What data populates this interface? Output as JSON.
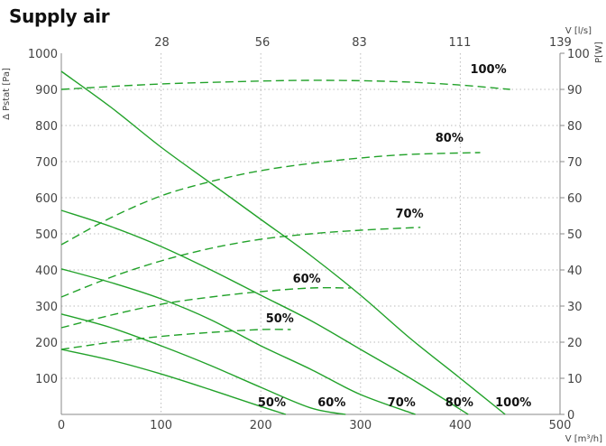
{
  "chart_data": {
    "type": "line",
    "title": "Supply air",
    "xlabel": "V [m³/h]",
    "ylabel": "Δ Pstat [Pa]",
    "y2label": "P[W]",
    "x2label": "V [l/s]",
    "xlim": [
      0,
      500
    ],
    "ylim": [
      0,
      1000
    ],
    "y2lim": [
      0,
      100
    ],
    "x_ticks": [
      0,
      100,
      200,
      300,
      400,
      500
    ],
    "y_ticks": [
      100,
      200,
      300,
      400,
      500,
      600,
      700,
      800,
      900,
      1000
    ],
    "y2_ticks": [
      0,
      10,
      20,
      30,
      40,
      50,
      60,
      70,
      80,
      90,
      100
    ],
    "x2_ticks": [
      28,
      56,
      83,
      111,
      139
    ],
    "grid": true,
    "colors": {
      "curve": "#22a22a",
      "grid": "#bbbbbb",
      "axis": "#888888"
    },
    "pressure_series": [
      {
        "name": "50%",
        "points": [
          [
            0,
            180
          ],
          [
            50,
            150
          ],
          [
            100,
            112
          ],
          [
            150,
            68
          ],
          [
            200,
            22
          ],
          [
            225,
            0
          ]
        ]
      },
      {
        "name": "60%",
        "points": [
          [
            0,
            278
          ],
          [
            50,
            240
          ],
          [
            100,
            190
          ],
          [
            150,
            135
          ],
          [
            200,
            75
          ],
          [
            250,
            18
          ],
          [
            285,
            0
          ]
        ]
      },
      {
        "name": "70%",
        "points": [
          [
            0,
            403
          ],
          [
            50,
            365
          ],
          [
            100,
            320
          ],
          [
            150,
            262
          ],
          [
            200,
            190
          ],
          [
            250,
            125
          ],
          [
            300,
            55
          ],
          [
            355,
            0
          ]
        ]
      },
      {
        "name": "80%",
        "points": [
          [
            0,
            565
          ],
          [
            50,
            520
          ],
          [
            100,
            465
          ],
          [
            150,
            400
          ],
          [
            200,
            330
          ],
          [
            250,
            260
          ],
          [
            300,
            180
          ],
          [
            350,
            100
          ],
          [
            408,
            0
          ]
        ]
      },
      {
        "name": "100%",
        "points": [
          [
            0,
            950
          ],
          [
            50,
            850
          ],
          [
            100,
            740
          ],
          [
            150,
            640
          ],
          [
            200,
            540
          ],
          [
            250,
            440
          ],
          [
            300,
            330
          ],
          [
            350,
            210
          ],
          [
            400,
            100
          ],
          [
            445,
            0
          ]
        ]
      }
    ],
    "power_series": [
      {
        "name": "50%",
        "points": [
          [
            0,
            18
          ],
          [
            50,
            20
          ],
          [
            100,
            21.6
          ],
          [
            150,
            22.7
          ],
          [
            200,
            23.5
          ],
          [
            230,
            23.5
          ]
        ]
      },
      {
        "name": "60%",
        "points": [
          [
            0,
            24
          ],
          [
            50,
            27.5
          ],
          [
            100,
            30.5
          ],
          [
            150,
            32.5
          ],
          [
            200,
            34
          ],
          [
            250,
            35
          ],
          [
            290,
            35
          ]
        ]
      },
      {
        "name": "70%",
        "points": [
          [
            0,
            32.5
          ],
          [
            50,
            38
          ],
          [
            100,
            42.5
          ],
          [
            150,
            46
          ],
          [
            200,
            48.5
          ],
          [
            250,
            50
          ],
          [
            300,
            51
          ],
          [
            360,
            51.8
          ]
        ]
      },
      {
        "name": "80%",
        "points": [
          [
            0,
            47
          ],
          [
            50,
            54.5
          ],
          [
            100,
            60.5
          ],
          [
            150,
            64.5
          ],
          [
            200,
            67.5
          ],
          [
            250,
            69.5
          ],
          [
            300,
            71
          ],
          [
            350,
            72
          ],
          [
            420,
            72.5
          ]
        ]
      },
      {
        "name": "100%",
        "points": [
          [
            0,
            90
          ],
          [
            100,
            91.5
          ],
          [
            200,
            92.3
          ],
          [
            250,
            92.5
          ],
          [
            300,
            92.4
          ],
          [
            350,
            92
          ],
          [
            400,
            91.2
          ],
          [
            450,
            90
          ]
        ]
      }
    ],
    "pressure_labels": [
      {
        "text": "50%",
        "x": 197,
        "y": 22
      },
      {
        "text": "60%",
        "x": 257,
        "y": 22
      },
      {
        "text": "70%",
        "x": 327,
        "y": 22
      },
      {
        "text": "80%",
        "x": 385,
        "y": 22
      },
      {
        "text": "100%",
        "x": 435,
        "y": 22
      }
    ],
    "power_labels": [
      {
        "text": "50%",
        "x": 205,
        "y": 25.5
      },
      {
        "text": "60%",
        "x": 232,
        "y": 36.5
      },
      {
        "text": "70%",
        "x": 335,
        "y": 54.5
      },
      {
        "text": "80%",
        "x": 375,
        "y": 75.5
      },
      {
        "text": "100%",
        "x": 410,
        "y": 94.5
      }
    ]
  }
}
